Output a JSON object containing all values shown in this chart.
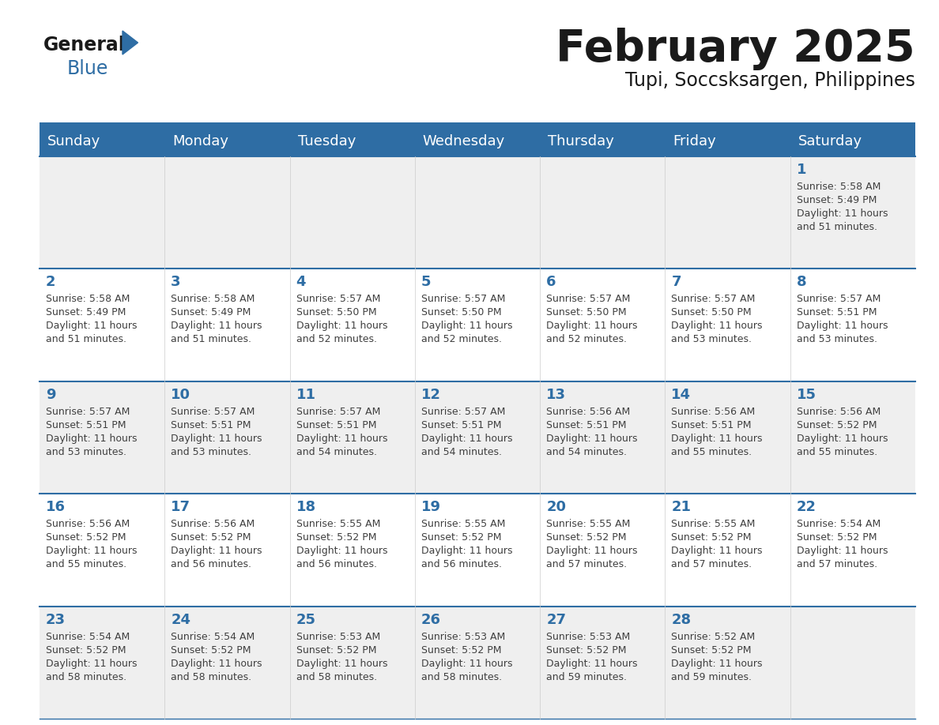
{
  "title": "February 2025",
  "subtitle": "Tupi, Soccsksargen, Philippines",
  "header_bg": "#2E6DA4",
  "header_text_color": "#FFFFFF",
  "weekdays": [
    "Sunday",
    "Monday",
    "Tuesday",
    "Wednesday",
    "Thursday",
    "Friday",
    "Saturday"
  ],
  "cell_bg_light": "#EFEFEF",
  "cell_bg_white": "#FFFFFF",
  "cell_border_color": "#2E6DA4",
  "day_text_color": "#2E6DA4",
  "info_text_color": "#404040",
  "logo_text1": "General",
  "logo_text2": "Blue",
  "logo_color1": "#1A1A1A",
  "logo_color2": "#2E6DA4",
  "calendar_data": [
    [
      null,
      null,
      null,
      null,
      null,
      null,
      {
        "day": 1,
        "sunrise": "5:58 AM",
        "sunset": "5:49 PM",
        "daylight": "11 hours",
        "daylight2": "and 51 minutes."
      }
    ],
    [
      {
        "day": 2,
        "sunrise": "5:58 AM",
        "sunset": "5:49 PM",
        "daylight": "11 hours",
        "daylight2": "and 51 minutes."
      },
      {
        "day": 3,
        "sunrise": "5:58 AM",
        "sunset": "5:49 PM",
        "daylight": "11 hours",
        "daylight2": "and 51 minutes."
      },
      {
        "day": 4,
        "sunrise": "5:57 AM",
        "sunset": "5:50 PM",
        "daylight": "11 hours",
        "daylight2": "and 52 minutes."
      },
      {
        "day": 5,
        "sunrise": "5:57 AM",
        "sunset": "5:50 PM",
        "daylight": "11 hours",
        "daylight2": "and 52 minutes."
      },
      {
        "day": 6,
        "sunrise": "5:57 AM",
        "sunset": "5:50 PM",
        "daylight": "11 hours",
        "daylight2": "and 52 minutes."
      },
      {
        "day": 7,
        "sunrise": "5:57 AM",
        "sunset": "5:50 PM",
        "daylight": "11 hours",
        "daylight2": "and 53 minutes."
      },
      {
        "day": 8,
        "sunrise": "5:57 AM",
        "sunset": "5:51 PM",
        "daylight": "11 hours",
        "daylight2": "and 53 minutes."
      }
    ],
    [
      {
        "day": 9,
        "sunrise": "5:57 AM",
        "sunset": "5:51 PM",
        "daylight": "11 hours",
        "daylight2": "and 53 minutes."
      },
      {
        "day": 10,
        "sunrise": "5:57 AM",
        "sunset": "5:51 PM",
        "daylight": "11 hours",
        "daylight2": "and 53 minutes."
      },
      {
        "day": 11,
        "sunrise": "5:57 AM",
        "sunset": "5:51 PM",
        "daylight": "11 hours",
        "daylight2": "and 54 minutes."
      },
      {
        "day": 12,
        "sunrise": "5:57 AM",
        "sunset": "5:51 PM",
        "daylight": "11 hours",
        "daylight2": "and 54 minutes."
      },
      {
        "day": 13,
        "sunrise": "5:56 AM",
        "sunset": "5:51 PM",
        "daylight": "11 hours",
        "daylight2": "and 54 minutes."
      },
      {
        "day": 14,
        "sunrise": "5:56 AM",
        "sunset": "5:51 PM",
        "daylight": "11 hours",
        "daylight2": "and 55 minutes."
      },
      {
        "day": 15,
        "sunrise": "5:56 AM",
        "sunset": "5:52 PM",
        "daylight": "11 hours",
        "daylight2": "and 55 minutes."
      }
    ],
    [
      {
        "day": 16,
        "sunrise": "5:56 AM",
        "sunset": "5:52 PM",
        "daylight": "11 hours",
        "daylight2": "and 55 minutes."
      },
      {
        "day": 17,
        "sunrise": "5:56 AM",
        "sunset": "5:52 PM",
        "daylight": "11 hours",
        "daylight2": "and 56 minutes."
      },
      {
        "day": 18,
        "sunrise": "5:55 AM",
        "sunset": "5:52 PM",
        "daylight": "11 hours",
        "daylight2": "and 56 minutes."
      },
      {
        "day": 19,
        "sunrise": "5:55 AM",
        "sunset": "5:52 PM",
        "daylight": "11 hours",
        "daylight2": "and 56 minutes."
      },
      {
        "day": 20,
        "sunrise": "5:55 AM",
        "sunset": "5:52 PM",
        "daylight": "11 hours",
        "daylight2": "and 57 minutes."
      },
      {
        "day": 21,
        "sunrise": "5:55 AM",
        "sunset": "5:52 PM",
        "daylight": "11 hours",
        "daylight2": "and 57 minutes."
      },
      {
        "day": 22,
        "sunrise": "5:54 AM",
        "sunset": "5:52 PM",
        "daylight": "11 hours",
        "daylight2": "and 57 minutes."
      }
    ],
    [
      {
        "day": 23,
        "sunrise": "5:54 AM",
        "sunset": "5:52 PM",
        "daylight": "11 hours",
        "daylight2": "and 58 minutes."
      },
      {
        "day": 24,
        "sunrise": "5:54 AM",
        "sunset": "5:52 PM",
        "daylight": "11 hours",
        "daylight2": "and 58 minutes."
      },
      {
        "day": 25,
        "sunrise": "5:53 AM",
        "sunset": "5:52 PM",
        "daylight": "11 hours",
        "daylight2": "and 58 minutes."
      },
      {
        "day": 26,
        "sunrise": "5:53 AM",
        "sunset": "5:52 PM",
        "daylight": "11 hours",
        "daylight2": "and 58 minutes."
      },
      {
        "day": 27,
        "sunrise": "5:53 AM",
        "sunset": "5:52 PM",
        "daylight": "11 hours",
        "daylight2": "and 59 minutes."
      },
      {
        "day": 28,
        "sunrise": "5:52 AM",
        "sunset": "5:52 PM",
        "daylight": "11 hours",
        "daylight2": "and 59 minutes."
      },
      null
    ]
  ]
}
